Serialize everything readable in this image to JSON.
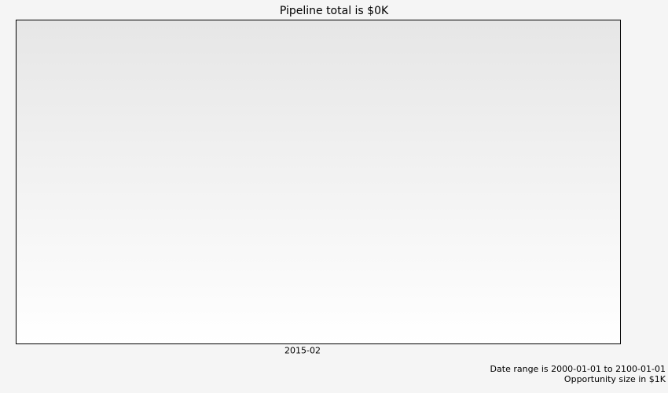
{
  "chart_data": {
    "type": "scatter",
    "title": "Pipeline total is $0K",
    "xlabel": "",
    "ylabel": "",
    "categories": [
      "2015-02"
    ],
    "series": [],
    "grid": false,
    "legend": "none",
    "background_gradient": [
      "#e6e6e6",
      "#ffffff"
    ],
    "border_color": "#000000"
  },
  "footer": {
    "date_range": "Date range is 2000-01-01 to 2100-01-01",
    "opportunity_size": "Opportunity size in $1K"
  }
}
